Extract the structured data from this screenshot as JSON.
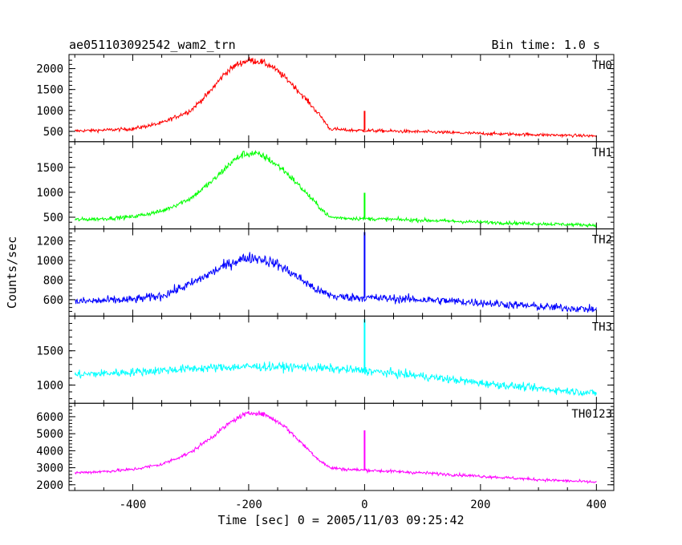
{
  "chart_data": {
    "type": "line",
    "title_left": "ae051103092542_wam2_trn",
    "title_right": "Bin time: 1.0 s",
    "xlabel": "Time [sec] 0 = 2005/11/03 09:25:42",
    "ylabel": "Counts/sec",
    "xlim": [
      -510,
      430
    ],
    "x_ticks": [
      -400,
      -200,
      0,
      200,
      400
    ],
    "grid": false,
    "panels": [
      {
        "name": "TH0",
        "color": "#ff0000",
        "ylim": [
          330,
          2260
        ],
        "y_ticks": [
          500,
          1000,
          1500,
          2000
        ],
        "x": [
          -500,
          -450,
          -400,
          -350,
          -300,
          -270,
          -240,
          -220,
          -200,
          -180,
          -160,
          -130,
          -100,
          -75,
          -60,
          -30,
          0,
          100,
          200,
          300,
          400
        ],
        "values": [
          510,
          530,
          560,
          700,
          1000,
          1400,
          1900,
          2100,
          2200,
          2170,
          2050,
          1700,
          1250,
          850,
          560,
          530,
          520,
          490,
          450,
          420,
          390
        ],
        "spike": {
          "x": 0,
          "value": 990
        }
      },
      {
        "name": "TH1",
        "color": "#00ff00",
        "ylim": [
          330,
          1950
        ],
        "y_ticks": [
          500,
          1000,
          1500
        ],
        "x": [
          -500,
          -450,
          -400,
          -350,
          -300,
          -260,
          -230,
          -210,
          -190,
          -170,
          -140,
          -110,
          -80,
          -60,
          -30,
          0,
          100,
          200,
          300,
          400
        ],
        "values": [
          450,
          470,
          510,
          620,
          880,
          1250,
          1600,
          1760,
          1780,
          1700,
          1450,
          1100,
          730,
          500,
          480,
          470,
          440,
          400,
          370,
          340
        ],
        "spike": {
          "x": 0,
          "value": 990
        }
      },
      {
        "name": "TH2",
        "color": "#0000ff",
        "ylim": [
          465,
          1290
        ],
        "y_ticks": [
          600,
          800,
          1000,
          1200
        ],
        "x": [
          -500,
          -400,
          -350,
          -300,
          -250,
          -220,
          -200,
          -180,
          -150,
          -120,
          -80,
          -50,
          0,
          100,
          200,
          300,
          400
        ],
        "values": [
          580,
          600,
          640,
          760,
          920,
          1000,
          1030,
          1020,
          960,
          850,
          690,
          630,
          620,
          600,
          570,
          530,
          500
        ],
        "spike": {
          "x": 0,
          "value": 1290
        }
      },
      {
        "name": "TH3",
        "color": "#00ffff",
        "ylim": [
          780,
          1960
        ],
        "y_ticks": [
          1000,
          1500
        ],
        "x": [
          -500,
          -400,
          -300,
          -200,
          -100,
          0,
          100,
          200,
          300,
          400
        ],
        "values": [
          1150,
          1190,
          1240,
          1270,
          1260,
          1210,
          1130,
          1030,
          950,
          880
        ],
        "spike": {
          "x": 0,
          "value": 1960
        }
      },
      {
        "name": "TH0123",
        "color": "#ff00ff",
        "ylim": [
          1850,
          6600
        ],
        "y_ticks": [
          2000,
          3000,
          4000,
          5000,
          6000
        ],
        "x": [
          -500,
          -450,
          -400,
          -350,
          -300,
          -260,
          -230,
          -210,
          -190,
          -170,
          -140,
          -110,
          -80,
          -60,
          -30,
          0,
          100,
          200,
          300,
          400
        ],
        "values": [
          2700,
          2780,
          2900,
          3200,
          3900,
          4900,
          5700,
          6100,
          6250,
          6100,
          5500,
          4500,
          3500,
          3000,
          2900,
          2860,
          2700,
          2500,
          2300,
          2150
        ],
        "spike": {
          "x": 0,
          "value": 5200
        }
      }
    ]
  }
}
